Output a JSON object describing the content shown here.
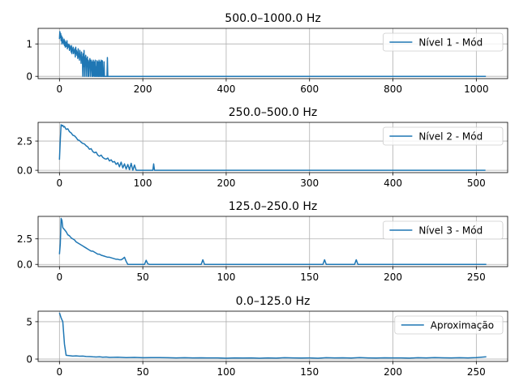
{
  "colors": {
    "series": "#1f77b4",
    "grid": "#b0b0b0",
    "axes": "#000000"
  },
  "chart_data": [
    {
      "type": "line",
      "title": "500.0–1000.0 Hz",
      "xlim": [
        -51.2,
        1075.2
      ],
      "ylim": [
        -0.07,
        1.48
      ],
      "xticks": [
        0,
        200,
        400,
        600,
        800,
        1000
      ],
      "yticks": [
        0,
        1
      ],
      "grid": true,
      "legend_position": "upper-right",
      "series": [
        {
          "name": "Nível 1 - Mód",
          "x": [
            0,
            1,
            2,
            3,
            4,
            5,
            6,
            7,
            8,
            9,
            10,
            11,
            12,
            13,
            14,
            15,
            16,
            17,
            18,
            19,
            20,
            21,
            22,
            23,
            24,
            25,
            26,
            27,
            28,
            29,
            30,
            31,
            32,
            33,
            34,
            35,
            36,
            37,
            38,
            39,
            40,
            41,
            42,
            43,
            44,
            45,
            46,
            47,
            48,
            49,
            50,
            51,
            52,
            53,
            54,
            55,
            56,
            57,
            58,
            59,
            60,
            61,
            62,
            63,
            64,
            65,
            66,
            67,
            68,
            69,
            70,
            71,
            72,
            73,
            74,
            75,
            76,
            77,
            78,
            79,
            80,
            81,
            82,
            83,
            84,
            85,
            86,
            87,
            88,
            89,
            90,
            91,
            92,
            93,
            94,
            95,
            96,
            97,
            98,
            99,
            100,
            101,
            102,
            103,
            104,
            105,
            106,
            107,
            108,
            109,
            110,
            111,
            112,
            113,
            114,
            115,
            116,
            117,
            118,
            119,
            120,
            1023
          ],
          "y": [
            1.15,
            1.38,
            1.2,
            1.32,
            1.1,
            1.25,
            1.0,
            1.2,
            1.05,
            1.1,
            1.0,
            1.15,
            0.95,
            1.1,
            0.9,
            1.05,
            1.0,
            0.92,
            1.1,
            0.85,
            1.0,
            0.95,
            0.9,
            0.98,
            0.8,
            0.95,
            0.85,
            0.9,
            0.75,
            0.95,
            0.7,
            0.85,
            0.8,
            0.9,
            0.7,
            0.8,
            0.75,
            0.85,
            0.6,
            0.9,
            0.7,
            0.8,
            0.65,
            0.75,
            0.55,
            0.85,
            0.6,
            0.7,
            0.5,
            0.8,
            0.6,
            0.65,
            0.4,
            0.75,
            0.5,
            0.6,
            0.0,
            0.7,
            0.3,
            0.8,
            0.0,
            0.6,
            0.45,
            0.65,
            0.0,
            0.55,
            0.3,
            0.6,
            0.0,
            0.5,
            0.0,
            0.45,
            0.35,
            0.55,
            0.0,
            0.4,
            0.5,
            0.3,
            0.0,
            0.45,
            0.0,
            0.5,
            0.2,
            0.0,
            0.45,
            0.0,
            0.5,
            0.0,
            0.3,
            0.0,
            0.48,
            0.0,
            0.45,
            0.0,
            0.0,
            0.5,
            0.0,
            0.45,
            0.0,
            0.0,
            0.5,
            0.0,
            0.0,
            0.48,
            0.0,
            0.0,
            0.0,
            0.45,
            0.0,
            0.0,
            0.0,
            0.0,
            0.0,
            0.0,
            0.0,
            0.58,
            0.0,
            0.0,
            0.0,
            0.0,
            0.0,
            0.0
          ]
        }
      ]
    },
    {
      "type": "line",
      "title": "250.0–500.0 Hz",
      "xlim": [
        -25.6,
        537.6
      ],
      "ylim": [
        -0.2,
        4.1
      ],
      "xticks": [
        0,
        100,
        200,
        300,
        400,
        500
      ],
      "yticks": [
        0.0,
        2.5
      ],
      "grid": true,
      "legend_position": "upper-right",
      "series": [
        {
          "name": "Nível 2 - Mód",
          "x": [
            0,
            1,
            2,
            3,
            4,
            5,
            6,
            8,
            10,
            12,
            14,
            16,
            18,
            20,
            22,
            24,
            26,
            28,
            30,
            32,
            34,
            36,
            38,
            40,
            42,
            44,
            46,
            48,
            50,
            52,
            54,
            56,
            58,
            60,
            62,
            64,
            66,
            68,
            70,
            72,
            74,
            76,
            78,
            80,
            82,
            84,
            86,
            88,
            90,
            92,
            94,
            96,
            98,
            100,
            102,
            104,
            106,
            108,
            110,
            112,
            113,
            114,
            116,
            118,
            120,
            511
          ],
          "y": [
            0.9,
            2.6,
            3.9,
            3.8,
            3.85,
            3.7,
            3.75,
            3.5,
            3.55,
            3.3,
            3.2,
            3.0,
            2.95,
            2.8,
            2.6,
            2.55,
            2.4,
            2.3,
            2.25,
            2.1,
            2.0,
            1.8,
            1.85,
            1.6,
            1.5,
            1.55,
            1.3,
            1.2,
            1.3,
            1.1,
            1.0,
            0.95,
            1.05,
            0.8,
            0.9,
            0.7,
            0.75,
            0.5,
            0.65,
            0.3,
            0.7,
            0.2,
            0.55,
            0.1,
            0.5,
            0.05,
            0.6,
            0.0,
            0.45,
            0.0,
            0.0,
            0.0,
            0.0,
            0.0,
            0.0,
            0.0,
            0.0,
            0.0,
            0.0,
            0.0,
            0.55,
            0.0,
            0.0,
            0.0,
            0.0,
            0.0
          ]
        }
      ]
    },
    {
      "type": "line",
      "title": "125.0–250.0 Hz",
      "xlim": [
        -12.8,
        268.8
      ],
      "ylim": [
        -0.22,
        4.7
      ],
      "xticks": [
        0,
        50,
        100,
        150,
        200,
        250
      ],
      "yticks": [
        0.0,
        2.5
      ],
      "grid": true,
      "legend_position": "upper-right",
      "series": [
        {
          "name": "Nível 3 - Mód",
          "x": [
            0,
            0.5,
            1,
            1.5,
            2,
            3,
            4,
            5,
            6,
            7,
            8,
            9,
            10,
            11,
            12,
            13,
            14,
            15,
            16,
            17,
            18,
            19,
            20,
            21,
            22,
            23,
            24,
            25,
            26,
            27,
            28,
            29,
            30,
            31,
            32,
            33,
            34,
            35,
            36,
            37,
            38,
            39,
            40,
            41,
            42,
            50,
            51,
            52,
            53,
            54,
            85,
            86,
            87,
            158,
            159,
            160,
            177,
            178,
            179,
            256
          ],
          "y": [
            1.0,
            2.0,
            4.5,
            4.3,
            3.6,
            3.4,
            3.2,
            2.9,
            2.8,
            2.6,
            2.5,
            2.4,
            2.2,
            2.1,
            2.0,
            1.9,
            1.8,
            1.7,
            1.6,
            1.5,
            1.4,
            1.3,
            1.3,
            1.2,
            1.1,
            1.0,
            1.0,
            0.9,
            0.85,
            0.8,
            0.75,
            0.7,
            0.7,
            0.65,
            0.6,
            0.55,
            0.5,
            0.5,
            0.45,
            0.45,
            0.55,
            0.7,
            0.3,
            0.0,
            0.0,
            0.0,
            0.0,
            0.4,
            0.05,
            0.0,
            0.0,
            0.45,
            0.0,
            0.0,
            0.45,
            0.0,
            0.0,
            0.45,
            0.0,
            0.0
          ]
        }
      ]
    },
    {
      "type": "line",
      "title": "0.0–125.0 Hz",
      "xlim": [
        -12.8,
        268.8
      ],
      "ylim": [
        -0.32,
        6.4
      ],
      "xticks": [
        0,
        50,
        100,
        150,
        200,
        250
      ],
      "yticks": [
        0,
        5
      ],
      "grid": true,
      "legend_position": "upper-right",
      "series": [
        {
          "name": "Aproximação",
          "x": [
            0,
            1,
            2,
            3,
            4,
            6,
            8,
            10,
            12,
            14,
            16,
            18,
            20,
            22,
            24,
            26,
            28,
            30,
            35,
            40,
            45,
            50,
            55,
            60,
            65,
            70,
            75,
            80,
            85,
            90,
            95,
            100,
            105,
            110,
            115,
            120,
            125,
            130,
            135,
            140,
            145,
            150,
            155,
            160,
            165,
            170,
            175,
            180,
            185,
            190,
            195,
            200,
            205,
            210,
            215,
            220,
            225,
            230,
            235,
            240,
            245,
            250,
            253,
            256
          ],
          "y": [
            6.2,
            5.5,
            5.0,
            2.0,
            0.5,
            0.45,
            0.4,
            0.42,
            0.38,
            0.4,
            0.35,
            0.33,
            0.3,
            0.28,
            0.3,
            0.25,
            0.28,
            0.22,
            0.25,
            0.2,
            0.22,
            0.18,
            0.2,
            0.2,
            0.18,
            0.15,
            0.18,
            0.15,
            0.17,
            0.15,
            0.16,
            0.12,
            0.15,
            0.14,
            0.16,
            0.12,
            0.15,
            0.13,
            0.18,
            0.15,
            0.14,
            0.16,
            0.12,
            0.18,
            0.15,
            0.17,
            0.14,
            0.2,
            0.16,
            0.14,
            0.17,
            0.15,
            0.16,
            0.13,
            0.18,
            0.15,
            0.2,
            0.17,
            0.15,
            0.18,
            0.16,
            0.2,
            0.25,
            0.3
          ]
        }
      ]
    }
  ]
}
